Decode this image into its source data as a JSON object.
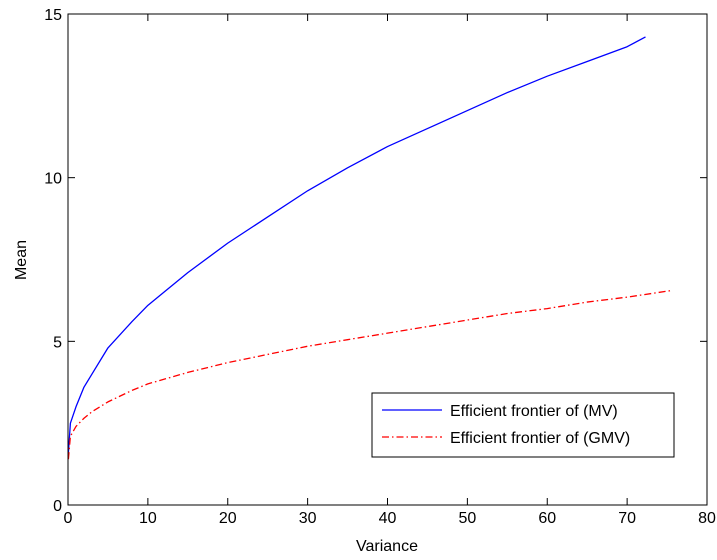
{
  "chart_data": {
    "type": "line",
    "title": "",
    "xlabel": "Variance",
    "ylabel": "Mean",
    "xlim": [
      0,
      80
    ],
    "ylim": [
      0,
      15
    ],
    "xticks": [
      0,
      10,
      20,
      30,
      40,
      50,
      60,
      70,
      80
    ],
    "yticks": [
      0,
      5,
      10,
      15
    ],
    "grid": false,
    "legend_position": "lower-right",
    "series": [
      {
        "name": "Efficient frontier of (MV)",
        "color": "#0000ff",
        "line_style": "solid",
        "x": [
          0.05,
          0.3,
          1,
          2,
          3,
          5,
          8,
          10,
          12,
          15,
          20,
          25,
          30,
          35,
          40,
          45,
          50,
          55,
          60,
          65,
          70,
          72.3
        ],
        "y": [
          1.6,
          2.5,
          3.0,
          3.6,
          4.0,
          4.8,
          5.6,
          6.1,
          6.5,
          7.1,
          8.0,
          8.8,
          9.6,
          10.3,
          10.95,
          11.5,
          12.05,
          12.6,
          13.1,
          13.55,
          14.0,
          14.3
        ]
      },
      {
        "name": "Efficient frontier of (GMV)",
        "color": "#ff0000",
        "line_style": "dash-dot",
        "x": [
          0.05,
          0.3,
          1,
          2,
          3,
          5,
          8,
          10,
          15,
          20,
          25,
          30,
          35,
          40,
          45,
          50,
          55,
          60,
          65,
          70,
          75.5
        ],
        "y": [
          1.4,
          2.1,
          2.4,
          2.65,
          2.85,
          3.15,
          3.5,
          3.7,
          4.05,
          4.35,
          4.6,
          4.85,
          5.05,
          5.25,
          5.45,
          5.65,
          5.85,
          6.0,
          6.2,
          6.35,
          6.55
        ]
      }
    ]
  }
}
